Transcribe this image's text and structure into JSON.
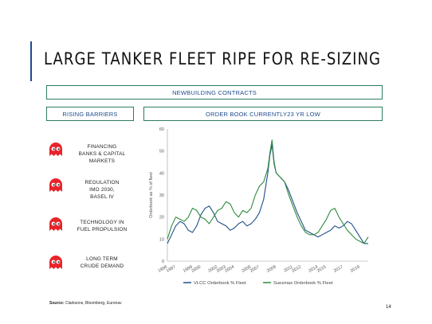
{
  "slide": {
    "title": "LARGE TANKER FLEET RIPE FOR RE-SIZING",
    "newbuilding_label": "NEWBUILDING CONTRACTS",
    "rising_barriers_label": "RISING BARRIERS",
    "order_book_label": "ORDER BOOK CURRENTLY23 YR LOW",
    "barriers": [
      {
        "icon": "red-ghost-icon",
        "lines": [
          "FINANCING",
          "BANKS & CAPITAL",
          "MARKETS"
        ]
      },
      {
        "icon": "red-ghost-icon",
        "lines": [
          "REGULATION",
          "IMO 2030,",
          "BASEL IV"
        ]
      },
      {
        "icon": "red-ghost-icon",
        "lines": [
          "TECHNOLOGY IN",
          "FUEL PROPULSION"
        ]
      },
      {
        "icon": "red-ghost-icon",
        "lines": [
          "LONG TERM",
          "CRUDE DEMAND"
        ]
      }
    ],
    "source_label": "Source:",
    "source_text": " Clarksons, Bloomberg, Euronav",
    "page_number": "14"
  },
  "colors": {
    "accent_blue": "#1e4b8f",
    "box_border": "#2e7d5b",
    "ghost_red": "#e8232a",
    "vlcc_line": "#1f4e8c",
    "suezmax_line": "#2e8b3e"
  },
  "chart_data": {
    "type": "line",
    "title": "",
    "ylabel": "Orderbook as % of fleet",
    "xlabel": "",
    "ylim": [
      0,
      60
    ],
    "yticks": [
      "0",
      "10",
      "20",
      "30",
      "40",
      "50",
      "60"
    ],
    "xlim": [
      1996,
      2020
    ],
    "xticks": [
      "1996",
      "1997",
      "1999",
      "2000",
      "2002",
      "2003",
      "2004",
      "2006",
      "2007",
      "2009",
      "2011",
      "2012",
      "2014",
      "2015",
      "2017",
      "2019"
    ],
    "legend": "bottom",
    "grid": false,
    "series": [
      {
        "name": "VLCC Orderbook % Fleet",
        "color": "#1f4e8c",
        "x": [
          1996.0,
          1996.5,
          1997.0,
          1997.5,
          1998.0,
          1998.5,
          1999.0,
          1999.5,
          2000.0,
          2000.5,
          2001.0,
          2001.5,
          2002.0,
          2002.5,
          2003.0,
          2003.5,
          2004.0,
          2004.5,
          2005.0,
          2005.5,
          2006.0,
          2006.5,
          2007.0,
          2007.5,
          2008.0,
          2008.25,
          2008.5,
          2008.75,
          2009.0,
          2009.5,
          2010.0,
          2010.5,
          2011.0,
          2011.5,
          2012.0,
          2012.5,
          2013.0,
          2013.5,
          2014.0,
          2014.5,
          2015.0,
          2015.5,
          2016.0,
          2016.5,
          2017.0,
          2017.5,
          2018.0,
          2018.5,
          2019.0,
          2019.5,
          2020.0
        ],
        "y": [
          8,
          12,
          16,
          18,
          17,
          14,
          13,
          16,
          21,
          24,
          25,
          22,
          18,
          17,
          16,
          14,
          15,
          17,
          18,
          16,
          17,
          19,
          22,
          28,
          40,
          48,
          53,
          44,
          40,
          38,
          36,
          32,
          27,
          22,
          18,
          14,
          13,
          12,
          11,
          12,
          13,
          14,
          16,
          15,
          16,
          18,
          17,
          14,
          11,
          8,
          8
        ]
      },
      {
        "name": "Suezmax Orderbook % Fleet",
        "color": "#2e8b3e",
        "x": [
          1996.0,
          1996.5,
          1997.0,
          1997.5,
          1998.0,
          1998.5,
          1999.0,
          1999.5,
          2000.0,
          2000.5,
          2001.0,
          2001.5,
          2002.0,
          2002.5,
          2003.0,
          2003.5,
          2004.0,
          2004.5,
          2005.0,
          2005.5,
          2006.0,
          2006.5,
          2007.0,
          2007.5,
          2008.0,
          2008.25,
          2008.5,
          2008.75,
          2009.0,
          2009.5,
          2010.0,
          2010.5,
          2011.0,
          2011.5,
          2012.0,
          2012.5,
          2013.0,
          2013.5,
          2014.0,
          2014.5,
          2015.0,
          2015.5,
          2016.0,
          2016.5,
          2017.0,
          2017.5,
          2018.0,
          2018.5,
          2019.0,
          2019.5,
          2020.0
        ],
        "y": [
          10,
          16,
          20,
          19,
          18,
          20,
          24,
          23,
          20,
          19,
          17,
          20,
          23,
          24,
          27,
          26,
          22,
          20,
          23,
          22,
          24,
          30,
          34,
          36,
          42,
          49,
          55,
          45,
          40,
          38,
          36,
          30,
          25,
          20,
          16,
          13,
          12,
          12,
          13,
          16,
          19,
          23,
          24,
          20,
          17,
          14,
          12,
          10,
          9,
          8,
          11
        ]
      }
    ]
  }
}
